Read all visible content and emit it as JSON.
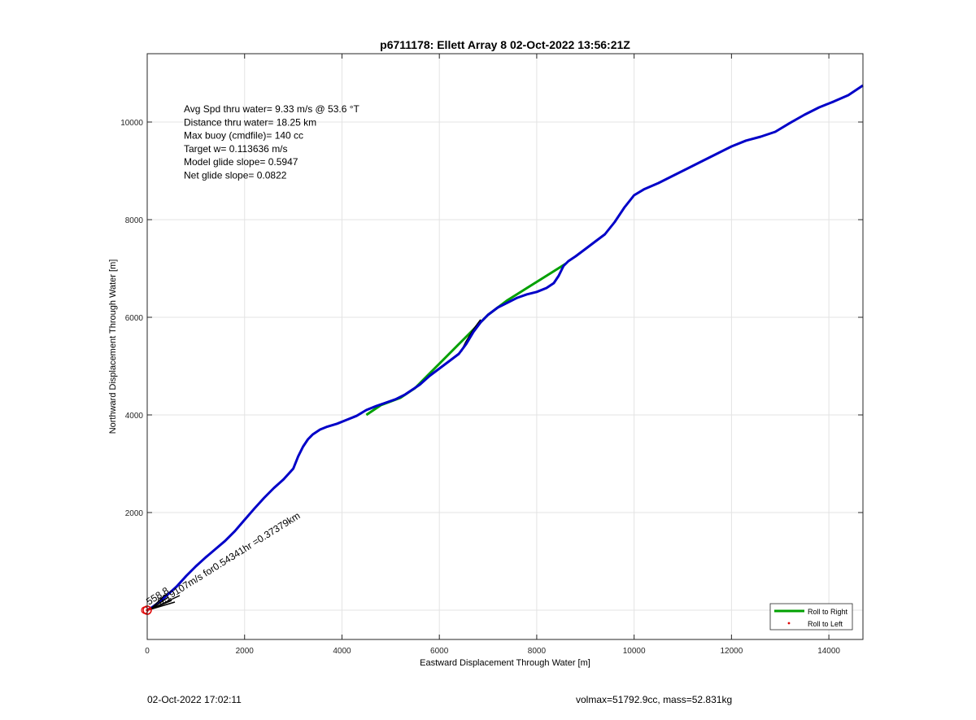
{
  "chart_data": {
    "type": "line",
    "title": "p6711178: Ellett Array 8 02-Oct-2022 13:56:21Z",
    "xlabel": "Eastward Displacement Through Water [m]",
    "ylabel": "Northward Displacement Through Water [m]",
    "xlim": [
      0,
      14700
    ],
    "ylim": [
      -600,
      11400
    ],
    "xticks": [
      0,
      2000,
      4000,
      6000,
      8000,
      10000,
      12000,
      14000
    ],
    "yticks": [
      2000,
      4000,
      6000,
      8000,
      10000
    ],
    "grid": true,
    "legend_position": "bottom-right",
    "info_lines": [
      "Avg Spd thru water=  9.33 m/s @  53.6 °T",
      "Distance thru water= 18.25 km",
      "Max buoy (cmdfile)= 140 cc",
      "Target w= 0.113636 m/s",
      "Model glide slope= 0.5947",
      "Net glide slope= 0.0822"
    ],
    "segment_annotation": "0.19107m/s for0.54341hr =0.37379km",
    "segment_annotation_overlap": "558.8",
    "series": [
      {
        "name": "Roll to Right",
        "color": "#00a000",
        "x": [
          4500,
          4800,
          5200,
          5500,
          5800,
          6100,
          6400,
          6700,
          7000,
          7400,
          7800,
          8200,
          8600
        ],
        "y": [
          4000,
          4200,
          4350,
          4550,
          4850,
          5150,
          5450,
          5750,
          6050,
          6350,
          6600,
          6850,
          7100
        ]
      },
      {
        "name": "Roll to Left",
        "color": "#e00000",
        "x": [
          0,
          40
        ],
        "y": [
          0,
          20
        ]
      },
      {
        "name": "",
        "color": "#000000",
        "x": [
          6450,
          6550,
          6700,
          6850
        ],
        "y": [
          5300,
          5500,
          5750,
          5950
        ]
      },
      {
        "name": "",
        "color": "#0000c8",
        "x": [
          0,
          100,
          250,
          400,
          600,
          800,
          1000,
          1200,
          1400,
          1600,
          1800,
          2000,
          2200,
          2400,
          2600,
          2800,
          3000,
          3100,
          3200,
          3300,
          3400,
          3550,
          3700,
          3900,
          4100,
          4300,
          4500,
          4700,
          4900,
          5100,
          5300,
          5450,
          5600,
          5800,
          6000,
          6200,
          6400,
          6550,
          6700,
          6850,
          7000,
          7200,
          7400,
          7600,
          7800,
          8000,
          8200,
          8350,
          8450,
          8550,
          8650,
          8800,
          9000,
          9200,
          9400,
          9600,
          9800,
          10000,
          10200,
          10500,
          10800,
          11100,
          11400,
          11700,
          12000,
          12300,
          12600,
          12900,
          13200,
          13500,
          13800,
          14100,
          14400,
          14700
        ],
        "y": [
          0,
          60,
          170,
          300,
          480,
          700,
          900,
          1080,
          1250,
          1420,
          1620,
          1850,
          2080,
          2300,
          2500,
          2680,
          2900,
          3150,
          3350,
          3500,
          3600,
          3700,
          3760,
          3820,
          3900,
          3980,
          4100,
          4180,
          4250,
          4320,
          4420,
          4520,
          4620,
          4800,
          4950,
          5100,
          5250,
          5450,
          5700,
          5900,
          6050,
          6200,
          6300,
          6400,
          6470,
          6520,
          6600,
          6700,
          6850,
          7050,
          7150,
          7250,
          7400,
          7550,
          7700,
          7950,
          8250,
          8500,
          8620,
          8750,
          8900,
          9050,
          9200,
          9350,
          9500,
          9620,
          9700,
          9800,
          9980,
          10150,
          10300,
          10420,
          10550,
          10750
        ]
      }
    ],
    "start_marker": {
      "x": 0,
      "y": 0
    }
  },
  "footer": {
    "timestamp": "02-Oct-2022 17:02:11",
    "volume_mass": "volmax=51792.9cc, mass=52.831kg"
  }
}
